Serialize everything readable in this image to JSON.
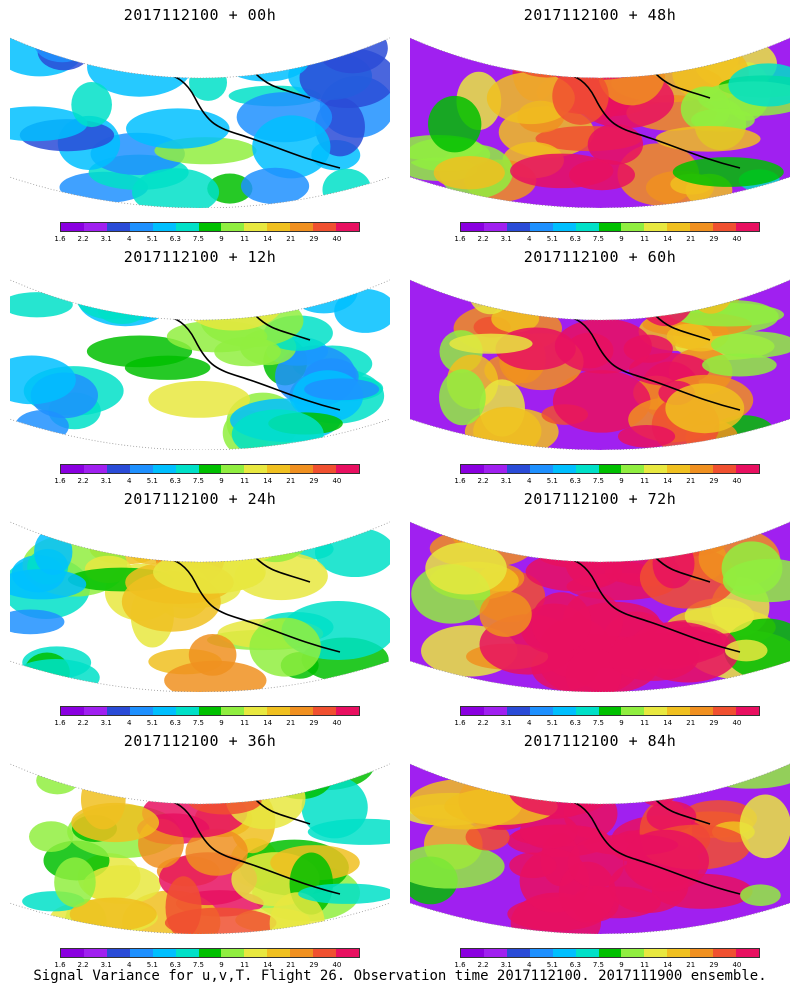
{
  "panels": [
    {
      "title": "2017112100 + 00h",
      "coverage": 0.55,
      "intensity": 0.25
    },
    {
      "title": "2017112100 + 48h",
      "coverage": 1.0,
      "intensity": 0.7
    },
    {
      "title": "2017112100 + 12h",
      "coverage": 0.65,
      "intensity": 0.35
    },
    {
      "title": "2017112100 + 60h",
      "coverage": 1.0,
      "intensity": 0.78
    },
    {
      "title": "2017112100 + 24h",
      "coverage": 0.8,
      "intensity": 0.5
    },
    {
      "title": "2017112100 + 72h",
      "coverage": 1.0,
      "intensity": 0.85
    },
    {
      "title": "2017112100 + 36h",
      "coverage": 0.95,
      "intensity": 0.6
    },
    {
      "title": "2017112100 + 84h",
      "coverage": 1.0,
      "intensity": 0.9
    }
  ],
  "colorbar": {
    "colors": [
      "#8a00e0",
      "#a020f0",
      "#2a4bd7",
      "#1e90ff",
      "#00bfff",
      "#00e0c8",
      "#00c000",
      "#90ee40",
      "#e8e840",
      "#f0c020",
      "#f09020",
      "#f05030",
      "#e81060"
    ],
    "ticks": [
      "1.6",
      "2.2",
      "3.1",
      "4",
      "5.1",
      "6.3",
      "7.5",
      "9",
      "11",
      "14",
      "21",
      "29",
      "40"
    ]
  },
  "footer": "Signal Variance for u,v,T. Flight 26. Observation time 2017112100. 2017111900 ensemble."
}
